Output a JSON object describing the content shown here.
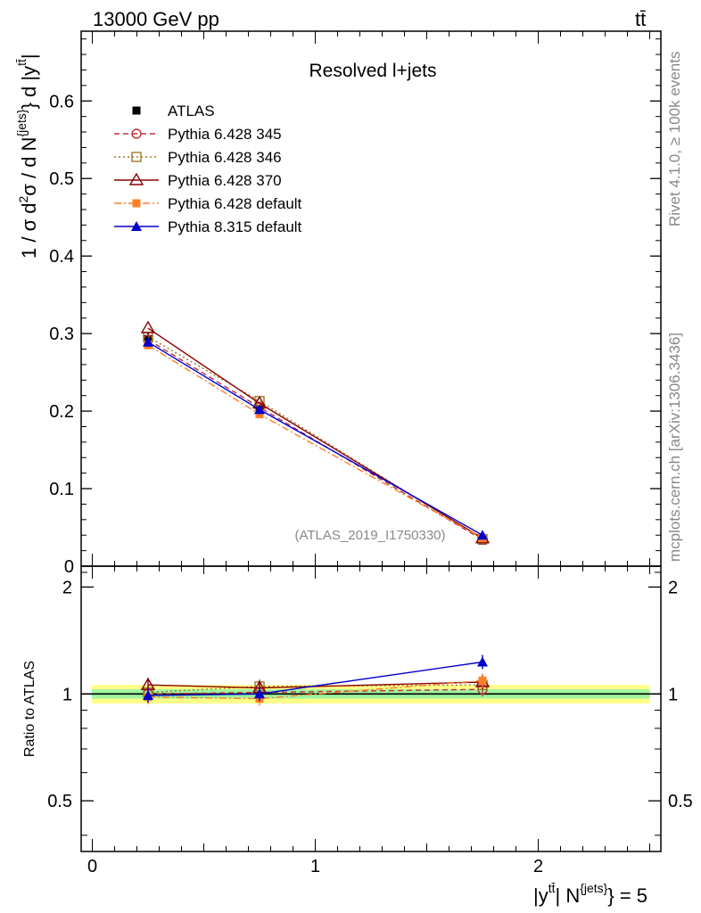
{
  "header": {
    "left": "13000 GeV pp",
    "right": "tt̄"
  },
  "side_labels": {
    "rivet": "Rivet 4.1.0, ≥ 100k events",
    "mcplots": "mcplots.cern.ch [arXiv:1306.3436]"
  },
  "colors": {
    "atlas": "#000000",
    "p345": "#c0303a",
    "p346": "#9b7a2a",
    "p370": "#8b0000",
    "p6def": "#ff7f2a",
    "p8def": "#0000cc",
    "band_inner": "#9ff59f",
    "band_outer": "#ffff88"
  },
  "chart_data": [
    {
      "type": "line",
      "panel": "main",
      "title": "Resolved l+jets",
      "watermark": "(ATLAS_2019_I1750330)",
      "ylabel": "1 / σ d²σ / d N^{jets} d |y^{tt̄}|",
      "xlim": [
        -0.05,
        2.55
      ],
      "ylim": [
        0,
        0.69
      ],
      "yticks": [
        0,
        0.1,
        0.2,
        0.3,
        0.4,
        0.5,
        0.6
      ],
      "ytick_labels": [
        "0",
        "0.1",
        "0.2",
        "0.3",
        "0.4",
        "0.5",
        "0.6"
      ],
      "x": [
        0.25,
        0.75,
        1.75
      ],
      "legend_position": "top-left",
      "series": [
        {
          "key": "atlas",
          "name": "ATLAS",
          "values": [
            0.293,
            0.203,
            0.033
          ],
          "errors": [
            0.008,
            0.005,
            0.003
          ],
          "style": "data",
          "marker": "square-filled"
        },
        {
          "key": "p345",
          "name": "Pythia 6.428 345",
          "values": [
            0.292,
            0.205,
            0.034
          ],
          "style": "dashed",
          "marker": "circle-open"
        },
        {
          "key": "p346",
          "name": "Pythia 6.428 346",
          "values": [
            0.296,
            0.213,
            0.035
          ],
          "style": "dotted",
          "marker": "square-open"
        },
        {
          "key": "p370",
          "name": "Pythia 6.428 370",
          "values": [
            0.307,
            0.21,
            0.036
          ],
          "style": "solid",
          "marker": "triangle-open"
        },
        {
          "key": "p6def",
          "name": "Pythia 6.428 default",
          "values": [
            0.285,
            0.196,
            0.036
          ],
          "style": "dashdot",
          "marker": "square-filled"
        },
        {
          "key": "p8def",
          "name": "Pythia 8.315 default",
          "values": [
            0.289,
            0.202,
            0.04
          ],
          "style": "solid",
          "marker": "triangle-filled"
        }
      ]
    },
    {
      "type": "line",
      "panel": "ratio",
      "ylabel": "Ratio to ATLAS",
      "xlabel": "|y^{tt̄}| N^{jets} = 5",
      "xlim": [
        -0.05,
        2.55
      ],
      "ylim": [
        0.36,
        2.29
      ],
      "yticks": [
        0.5,
        1,
        2
      ],
      "ytick_labels": [
        "0.5",
        "1",
        "2"
      ],
      "xticks": [
        0,
        1,
        2
      ],
      "xtick_labels": [
        "0",
        "1",
        "2"
      ],
      "x": [
        0.25,
        0.75,
        1.75
      ],
      "band_inner": [
        0.97,
        1.03
      ],
      "band_outer": [
        0.94,
        1.06
      ],
      "series": [
        {
          "key": "p345",
          "name": "Pythia 6.428 345",
          "values": [
            1.0,
            1.01,
            1.03
          ]
        },
        {
          "key": "p346",
          "name": "Pythia 6.428 346",
          "values": [
            1.01,
            1.05,
            1.06
          ]
        },
        {
          "key": "p370",
          "name": "Pythia 6.428 370",
          "values": [
            1.06,
            1.04,
            1.08
          ]
        },
        {
          "key": "p6def",
          "name": "Pythia 6.428 default",
          "values": [
            0.98,
            0.97,
            1.09
          ]
        },
        {
          "key": "p8def",
          "name": "Pythia 8.315 default",
          "values": [
            0.99,
            1.0,
            1.23
          ]
        }
      ]
    }
  ]
}
